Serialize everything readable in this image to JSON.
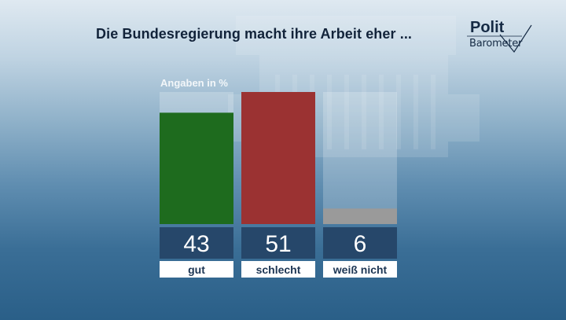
{
  "header": {
    "title": "Die Bundesregierung macht ihre Arbeit eher ...",
    "logo_line1": "Polit",
    "logo_line2": "Barometer"
  },
  "chart_data": {
    "type": "bar",
    "subtitle": "Angaben in %",
    "categories": [
      "gut",
      "schlecht",
      "weiß nicht"
    ],
    "values": [
      43,
      51,
      6
    ],
    "value_labels": [
      "43",
      "51",
      "6"
    ],
    "colors": [
      "#1e6b1e",
      "#9b3232",
      "#9a9a9a"
    ],
    "ylim": [
      0,
      51
    ],
    "grid": false,
    "legend": "none"
  },
  "colors": {
    "value_box": "#26476a",
    "label_box": "#ffffff",
    "label_text": "#1c3553",
    "title_text": "#12233a"
  }
}
